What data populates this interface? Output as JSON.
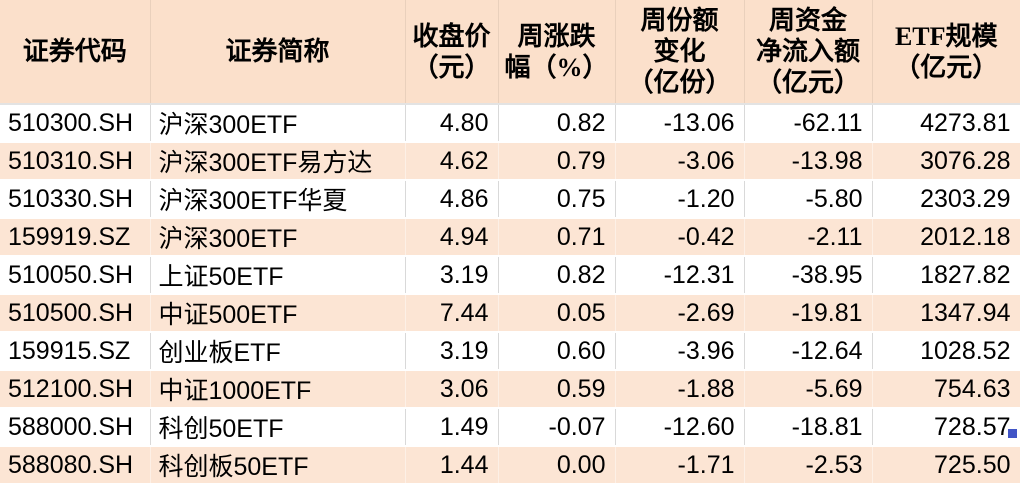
{
  "meta": {
    "header_bg": "#fbe0cb",
    "alt_row_bg": "#fce5d4",
    "gridline_color": "#d9d9d9",
    "fill_handle_color": "#4155c6"
  },
  "chart_data": {
    "type": "table",
    "title": "",
    "columns": [
      "证券代码",
      "证券简称",
      "收盘价（元）",
      "周涨跌幅（%）",
      "周份额变化（亿份）",
      "周资金净流入额（亿元）",
      "ETF规模（亿元）"
    ],
    "rows": [
      [
        "510300.SH",
        "沪深300ETF",
        "4.80",
        "0.82",
        "-13.06",
        "-62.11",
        "4273.81"
      ],
      [
        "510310.SH",
        "沪深300ETF易方达",
        "4.62",
        "0.79",
        "-3.06",
        "-13.98",
        "3076.28"
      ],
      [
        "510330.SH",
        "沪深300ETF华夏",
        "4.86",
        "0.75",
        "-1.20",
        "-5.80",
        "2303.29"
      ],
      [
        "159919.SZ",
        "沪深300ETF",
        "4.94",
        "0.71",
        "-0.42",
        "-2.11",
        "2012.18"
      ],
      [
        "510050.SH",
        "上证50ETF",
        "3.19",
        "0.82",
        "-12.31",
        "-38.95",
        "1827.82"
      ],
      [
        "510500.SH",
        "中证500ETF",
        "7.44",
        "0.05",
        "-2.69",
        "-19.81",
        "1347.94"
      ],
      [
        "159915.SZ",
        "创业板ETF",
        "3.19",
        "0.60",
        "-3.96",
        "-12.64",
        "1028.52"
      ],
      [
        "512100.SH",
        "中证1000ETF",
        "3.06",
        "0.59",
        "-1.88",
        "-5.69",
        "754.63"
      ],
      [
        "588000.SH",
        "科创50ETF",
        "1.49",
        "-0.07",
        "-12.60",
        "-18.81",
        "728.57"
      ],
      [
        "588080.SH",
        "科创板50ETF",
        "1.44",
        "0.00",
        "-1.71",
        "-2.53",
        "725.50"
      ]
    ]
  },
  "header": {
    "cells": [
      {
        "lines": [
          "证券代码"
        ]
      },
      {
        "lines": [
          "证券简称"
        ]
      },
      {
        "lines": [
          "收盘价",
          "（元）"
        ]
      },
      {
        "lines": [
          "周涨跌",
          "幅（%）"
        ]
      },
      {
        "lines": [
          "周份额",
          "变化",
          "（亿份）"
        ]
      },
      {
        "lines": [
          "周资金",
          "净流入额",
          "（亿元）"
        ]
      },
      {
        "lines": [
          "ETF规模",
          "（亿元）"
        ]
      }
    ]
  }
}
